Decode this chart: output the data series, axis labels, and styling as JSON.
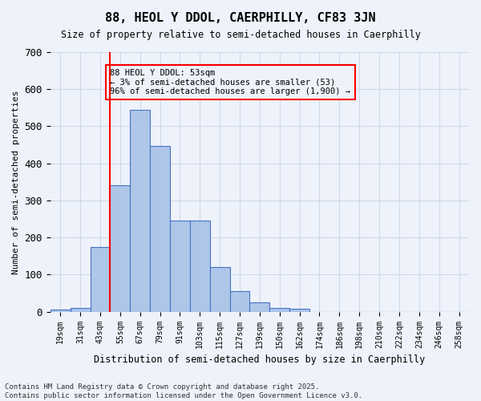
{
  "title": "88, HEOL Y DDOL, CAERPHILLY, CF83 3JN",
  "subtitle": "Size of property relative to semi-detached houses in Caerphilly",
  "xlabel": "Distribution of semi-detached houses by size in Caerphilly",
  "ylabel": "Number of semi-detached properties",
  "footer_line1": "Contains HM Land Registry data © Crown copyright and database right 2025.",
  "footer_line2": "Contains public sector information licensed under the Open Government Licence v3.0.",
  "annotation_title": "88 HEOL Y DDOL: 53sqm",
  "annotation_line2": "← 3% of semi-detached houses are smaller (53)",
  "annotation_line3": "96% of semi-detached houses are larger (1,900) →",
  "bin_labels": [
    "19sqm",
    "31sqm",
    "43sqm",
    "55sqm",
    "67sqm",
    "79sqm",
    "91sqm",
    "103sqm",
    "115sqm",
    "127sqm",
    "139sqm",
    "150sqm",
    "162sqm",
    "174sqm",
    "186sqm",
    "198sqm",
    "210sqm",
    "222sqm",
    "234sqm",
    "246sqm",
    "258sqm"
  ],
  "bar_values": [
    5,
    10,
    175,
    340,
    545,
    447,
    245,
    245,
    120,
    55,
    25,
    10,
    8,
    0,
    0,
    0,
    0,
    0,
    0,
    0,
    0
  ],
  "bar_color": "#aec6e8",
  "bar_edge_color": "#4472c4",
  "grid_color": "#d0d8e8",
  "bg_color": "#eef2fa",
  "vline_color": "red",
  "ylim": [
    0,
    700
  ],
  "yticks": [
    0,
    100,
    200,
    300,
    400,
    500,
    600,
    700
  ]
}
